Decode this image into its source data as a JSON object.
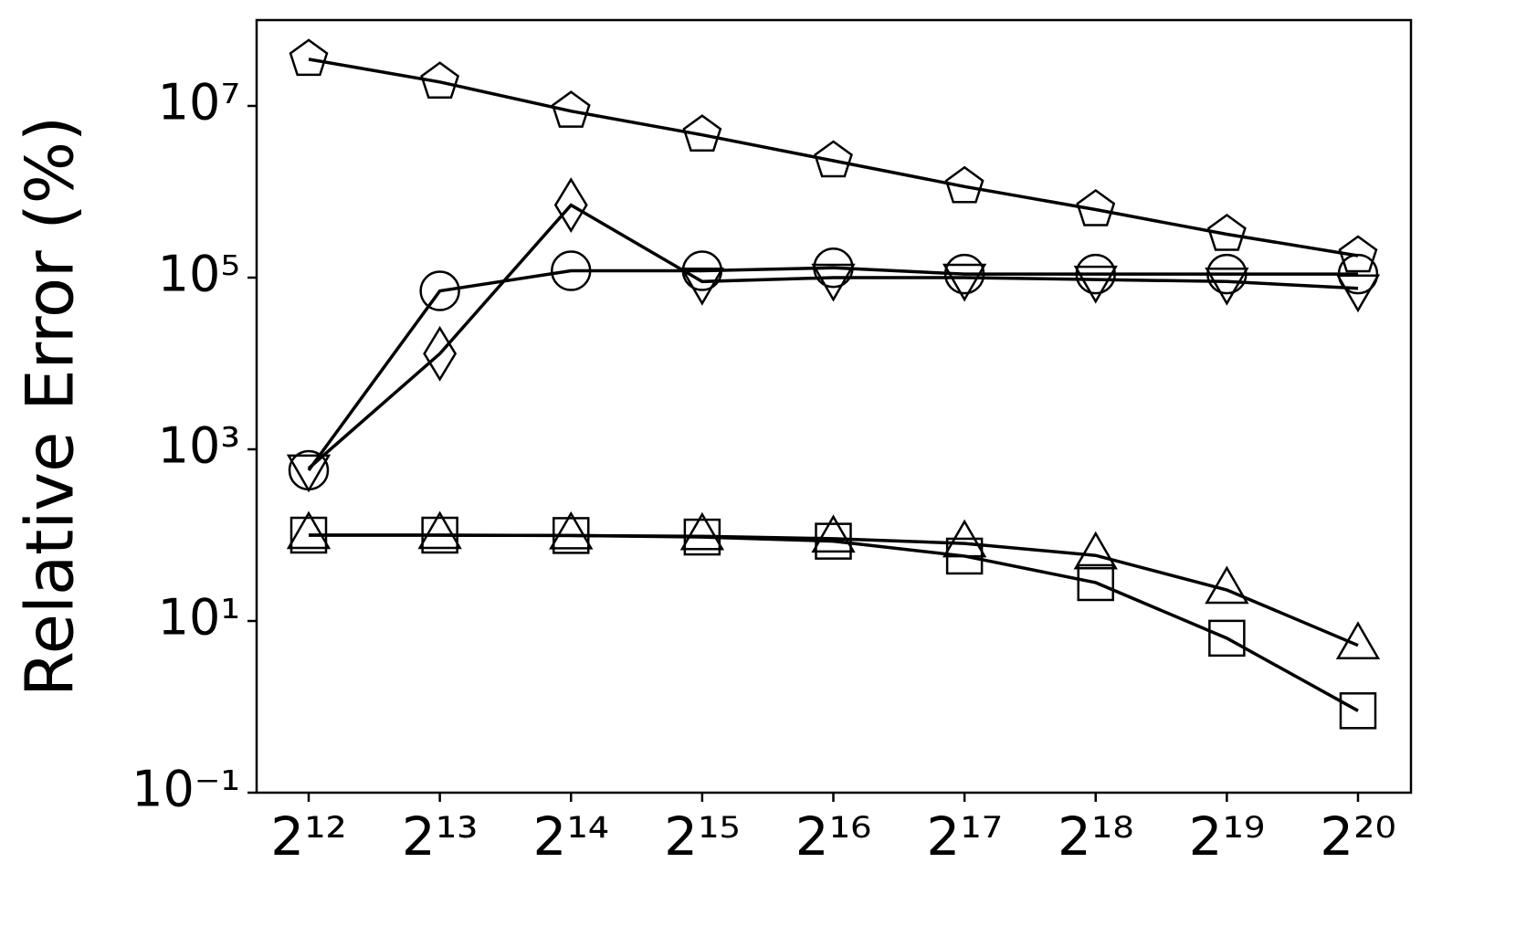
{
  "chart_data": {
    "type": "line",
    "y_label": "Relative Error (%)",
    "y_scale": "log",
    "grid": false,
    "categories": [
      "2¹²",
      "2¹³",
      "2¹⁴",
      "2¹⁵",
      "2¹⁶",
      "2¹⁷",
      "2¹⁸",
      "2¹⁹",
      "2²⁰"
    ],
    "ylim": [
      0.1,
      100000000
    ],
    "yticks": [
      {
        "value": 0.1,
        "label": "10⁻¹"
      },
      {
        "value": 10,
        "label": "10¹"
      },
      {
        "value": 1000,
        "label": "10³"
      },
      {
        "value": 100000,
        "label": "10⁵"
      },
      {
        "value": 10000000,
        "label": "10⁷"
      }
    ],
    "series": [
      {
        "color": "#000000",
        "marker": "pentagon",
        "values": [
          35000000,
          19000000,
          8700000,
          4600000,
          2300000,
          1150000,
          620000,
          320000,
          180000
        ]
      },
      {
        "color": "#000000",
        "marker": "circle",
        "values": [
          570,
          70000,
          120000,
          120000,
          130000,
          110000,
          110000,
          110000,
          110000
        ]
      },
      {
        "color": "#000000",
        "markers": [
          "triangle-down",
          "diamond",
          "diamond",
          "triangle-down",
          "triangle-down",
          "triangle-down",
          "triangle-down",
          "triangle-down",
          "triangle-down"
        ],
        "values": [
          600,
          13000,
          700000,
          90000,
          100000,
          100000,
          95000,
          90000,
          75000
        ]
      },
      {
        "color": "#000000",
        "marker": "triangle-up",
        "values": [
          100,
          100,
          99,
          97,
          91,
          80,
          58,
          23,
          5.2
        ]
      },
      {
        "color": "#000000",
        "marker": "square",
        "values": [
          100,
          100,
          99,
          95,
          85,
          57,
          28,
          6.3,
          0.9
        ]
      }
    ]
  }
}
